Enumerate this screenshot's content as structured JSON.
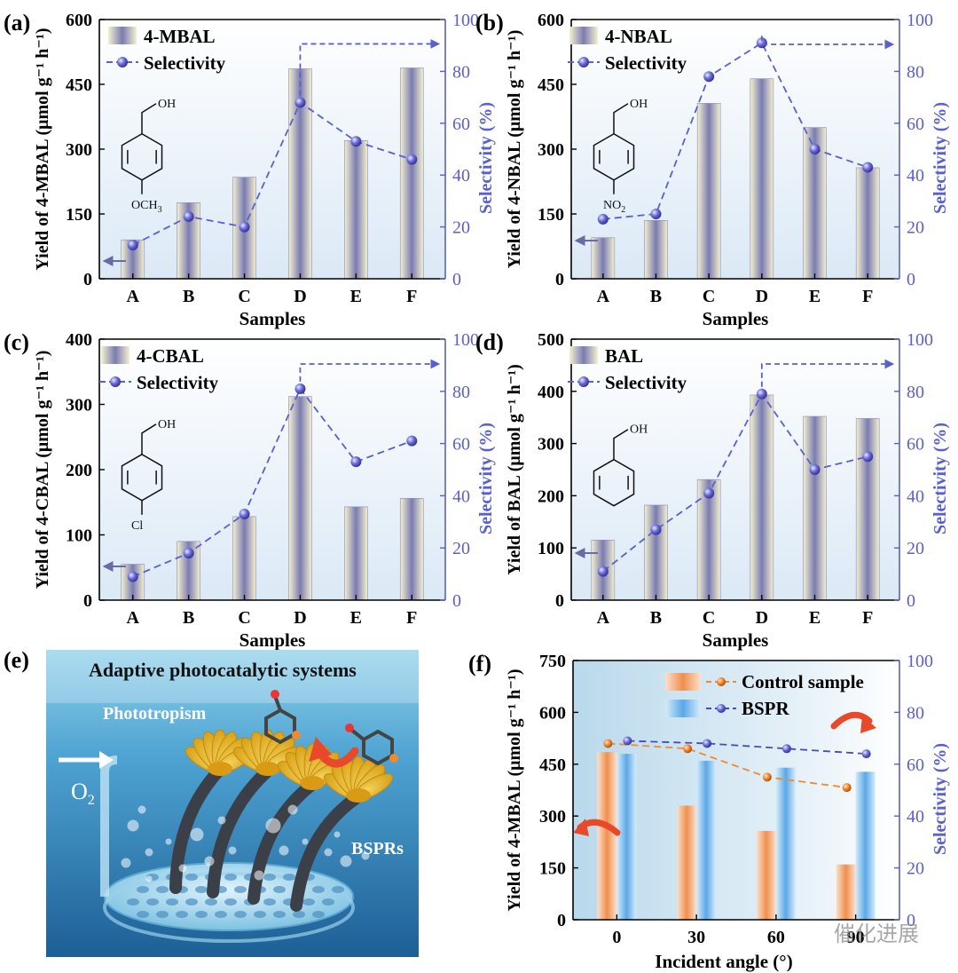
{
  "panel_e": {
    "label": "(e)",
    "title": "Adaptive photocatalytic systems",
    "phototropism": "Phototropism",
    "o2": "O",
    "o2_sub": "2",
    "bsprs": "BSPRs",
    "colors": {
      "water_top": "#8fd0ea",
      "water_mid": "#3d8fc4",
      "water_deep": "#1d5f96",
      "flower": "#f2c233",
      "stem": "#3b4048"
    }
  },
  "watermark": "催化进展",
  "colors": {
    "bar_mid": "#7b7bb2",
    "bar_edge": "#f4f1cf",
    "selectivity": "#5a5fd0",
    "control_bar": "#ef8f4e",
    "bspr_bar": "#5aa8e6",
    "control_line": "#f08a2c",
    "bspr_line": "#4a4ab8",
    "axis_right": "#5a5fd0"
  },
  "chart_data": [
    {
      "panel": "(a)",
      "type": "bar",
      "categories": [
        "A",
        "B",
        "C",
        "D",
        "E",
        "F"
      ],
      "series": [
        {
          "name": "4-MBAL",
          "type": "bar",
          "axis": "left",
          "values": [
            90,
            176,
            235,
            486,
            320,
            488
          ]
        },
        {
          "name": "Selectivity",
          "type": "line",
          "axis": "right",
          "values": [
            13,
            24,
            20,
            68,
            53,
            46
          ]
        }
      ],
      "ylabel": "Yield of 4-MBAL  (μmol g⁻¹ h⁻¹)",
      "y2label": "Selectivity (%)",
      "xlabel": "Samples",
      "ylim": [
        0,
        600
      ],
      "y2lim": [
        0,
        100
      ],
      "yticks": [
        "0",
        "150",
        "300",
        "450",
        "600"
      ],
      "y2ticks": [
        "0",
        "20",
        "40",
        "60",
        "80",
        "100"
      ],
      "molecule_label": "OH",
      "substituent": "OCH",
      "substituent_sub": "3",
      "legend_position": "top-left",
      "grid": false
    },
    {
      "panel": "(b)",
      "type": "bar",
      "categories": [
        "A",
        "B",
        "C",
        "D",
        "E",
        "F"
      ],
      "series": [
        {
          "name": "4-NBAL",
          "type": "bar",
          "axis": "left",
          "values": [
            95,
            135,
            406,
            463,
            350,
            257
          ]
        },
        {
          "name": "Selectivity",
          "type": "line",
          "axis": "right",
          "values": [
            23,
            25,
            78,
            91,
            50,
            43
          ]
        }
      ],
      "ylabel": "Yield of 4-NBAL  (μmol g⁻¹ h⁻¹)",
      "y2label": "Selectivity (%)",
      "xlabel": "Samples",
      "ylim": [
        0,
        600
      ],
      "y2lim": [
        0,
        100
      ],
      "yticks": [
        "0",
        "150",
        "300",
        "450",
        "600"
      ],
      "y2ticks": [
        "0",
        "20",
        "40",
        "60",
        "80",
        "100"
      ],
      "molecule_label": "OH",
      "substituent": "NO",
      "substituent_sub": "2",
      "legend_position": "top-left",
      "grid": false
    },
    {
      "panel": "(c)",
      "type": "bar",
      "categories": [
        "A",
        "B",
        "C",
        "D",
        "E",
        "F"
      ],
      "series": [
        {
          "name": "4-CBAL",
          "type": "bar",
          "axis": "left",
          "values": [
            55,
            90,
            128,
            312,
            143,
            156
          ]
        },
        {
          "name": "Selectivity",
          "type": "line",
          "axis": "right",
          "values": [
            9,
            18,
            33,
            81,
            53,
            61
          ]
        }
      ],
      "ylabel": "Yield of 4-CBAL  (μmol g⁻¹ h⁻¹)",
      "y2label": "Selectivity (%)",
      "xlabel": "Samples",
      "ylim": [
        0,
        400
      ],
      "y2lim": [
        0,
        100
      ],
      "yticks": [
        "0",
        "100",
        "200",
        "300",
        "400"
      ],
      "y2ticks": [
        "0",
        "20",
        "40",
        "60",
        "80",
        "100"
      ],
      "molecule_label": "OH",
      "substituent": "Cl",
      "substituent_sub": "",
      "legend_position": "top-left",
      "grid": false
    },
    {
      "panel": "(d)",
      "type": "bar",
      "categories": [
        "A",
        "B",
        "C",
        "D",
        "E",
        "F"
      ],
      "series": [
        {
          "name": "BAL",
          "type": "bar",
          "axis": "left",
          "values": [
            115,
            182,
            231,
            393,
            352,
            348
          ]
        },
        {
          "name": "Selectivity",
          "type": "line",
          "axis": "right",
          "values": [
            11,
            27,
            41,
            79,
            50,
            55
          ]
        }
      ],
      "ylabel": "Yield of BAL  (μmol g⁻¹ h⁻¹)",
      "y2label": "Selectivity (%)",
      "xlabel": "Samples",
      "ylim": [
        0,
        500
      ],
      "y2lim": [
        0,
        100
      ],
      "yticks": [
        "0",
        "100",
        "200",
        "300",
        "400",
        "500"
      ],
      "y2ticks": [
        "0",
        "20",
        "40",
        "60",
        "80",
        "100"
      ],
      "molecule_label": "OH",
      "substituent": "",
      "substituent_sub": "",
      "legend_position": "top-left",
      "grid": false
    },
    {
      "panel": "(f)",
      "type": "bar",
      "categories": [
        "0",
        "30",
        "60",
        "90"
      ],
      "series": [
        {
          "name": "Control sample",
          "type": "bar",
          "axis": "left",
          "values": [
            485,
            330,
            257,
            160
          ]
        },
        {
          "name": "BSPR",
          "type": "bar",
          "axis": "left",
          "values": [
            480,
            460,
            440,
            428
          ]
        },
        {
          "name": "Control sample",
          "type": "line",
          "axis": "right",
          "values": [
            68,
            66,
            55,
            51
          ]
        },
        {
          "name": "BSPR",
          "type": "line",
          "axis": "right",
          "values": [
            69,
            68,
            66,
            64
          ]
        }
      ],
      "ylabel": "Yield of 4-MBAL  (μmol g⁻¹ h⁻¹)",
      "y2label": "Selectivity (%)",
      "xlabel": "Incident angle (°)",
      "ylim": [
        0,
        750
      ],
      "y2lim": [
        0,
        100
      ],
      "yticks": [
        "0",
        "150",
        "300",
        "450",
        "600",
        "750"
      ],
      "y2ticks": [
        "0",
        "20",
        "40",
        "60",
        "80",
        "100"
      ],
      "legend_position": "top-right",
      "grid": false
    }
  ]
}
